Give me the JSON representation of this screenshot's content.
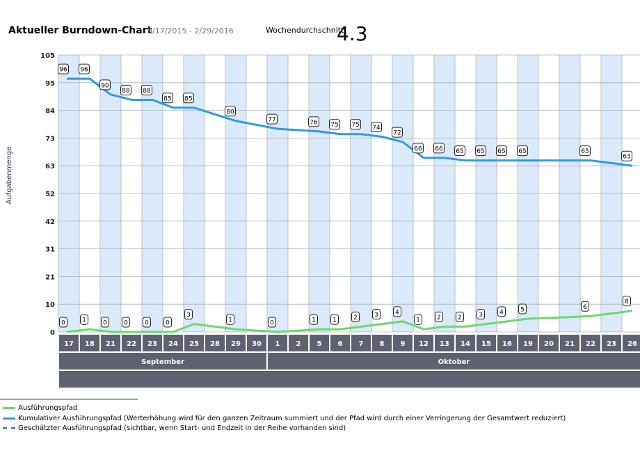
{
  "header": {
    "title": "Aktueller Burndown-Chart",
    "date_range": "9/17/2015 - 2/29/2016",
    "average_label": "Wochendurchschnitt",
    "average_value": "4.3"
  },
  "legend": {
    "items": [
      {
        "label": "Ausführungspfad",
        "color": "#6dd86d",
        "style": "solid"
      },
      {
        "label": "Kumulativer Ausführungspfad (Werterhöhung wird für den ganzen Zeitraum summiert und der Pfad wird durch einer Verringerung der Gesamtwert reduziert)",
        "color": "#2f9be0",
        "style": "solid"
      },
      {
        "label": "Geschätzter Ausführungspfad (sichtbar, wenn Start- und Endzeit in der Reihe vorhanden sind)",
        "color": "#2f5fd8",
        "style": "dashed"
      }
    ]
  },
  "chart_data": {
    "type": "line",
    "ylabel": "Aufgabenmenge",
    "ylim": [
      0,
      105
    ],
    "yticks": [
      "105",
      "95",
      "84",
      "73",
      "63",
      "52",
      "42",
      "31",
      "21",
      "10",
      "0"
    ],
    "categories": [
      "17",
      "18",
      "21",
      "22",
      "23",
      "24",
      "25",
      "28",
      "29",
      "30",
      "1",
      "2",
      "5",
      "6",
      "7",
      "8",
      "9",
      "12",
      "13",
      "14",
      "15",
      "16",
      "19",
      "20",
      "21",
      "22",
      "23",
      "26"
    ],
    "months": [
      {
        "label": "September",
        "span": 10
      },
      {
        "label": "Oktober",
        "span": 18
      }
    ],
    "colors": {
      "cumulative": "#2f9be0",
      "execution": "#6dd86d",
      "band": "#dbeafb",
      "grid": "#aab1bd",
      "axis_bar": "#5e6170"
    },
    "series": [
      {
        "name": "Kumulativer Ausführungspfad",
        "values": [
          96,
          96,
          90,
          88,
          88,
          85,
          85,
          82.5,
          80,
          78.5,
          77,
          76.5,
          76,
          75,
          75,
          74,
          72,
          66,
          66,
          65,
          65,
          65,
          65,
          65,
          65,
          65,
          64,
          63
        ],
        "labels": [
          "96",
          "96",
          "90",
          "88",
          "88",
          "85",
          "85",
          "",
          "80",
          "",
          "77",
          "",
          "76",
          "75",
          "75",
          "74",
          "72",
          "66",
          "66",
          "65",
          "65",
          "65",
          "65",
          "",
          "",
          "65",
          "",
          "63"
        ]
      },
      {
        "name": "Ausführungspfad",
        "values": [
          0,
          1,
          0,
          0,
          0,
          0,
          3,
          2,
          1,
          0.5,
          0,
          0.5,
          1,
          1,
          2,
          3,
          4,
          1,
          2,
          2,
          3,
          4,
          5,
          5.3,
          5.6,
          6,
          7,
          8
        ],
        "labels": [
          "0",
          "1",
          "0",
          "0",
          "0",
          "0",
          "3",
          "",
          "1",
          "",
          "0",
          "",
          "1",
          "1",
          "2",
          "3",
          "4",
          "1",
          "2",
          "2",
          "3",
          "4",
          "5",
          "",
          "",
          "6",
          "",
          "8"
        ]
      }
    ]
  }
}
